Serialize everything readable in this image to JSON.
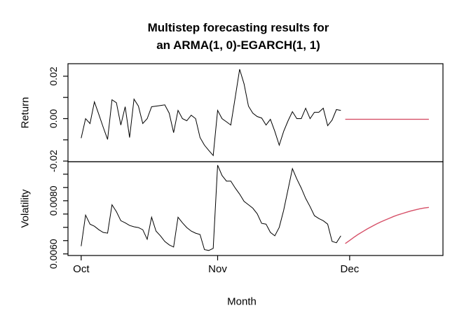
{
  "title": {
    "line1": "Multistep forecasting results for",
    "line2": "an ARMA(1, 0)-EGARCH(1, 1)"
  },
  "colors": {
    "background": "#FFFFFF",
    "axis": "#000000",
    "observed_series": "#000000",
    "forecast_series": "#D65068"
  },
  "chart_data": {
    "type": "line",
    "title": "Multistep forecasting results for an ARMA(1, 0)-EGARCH(1, 1)",
    "xlabel": "Month",
    "x_unit": "days (0 = Oct 1)",
    "x_domain": [
      -3.0,
      82.2
    ],
    "x_ticks": [
      {
        "label": "Oct",
        "day": 0
      },
      {
        "label": "Nov",
        "day": 31
      },
      {
        "label": "Dec",
        "day": 61
      }
    ],
    "grid": false,
    "legend": "none",
    "panels": [
      {
        "name": "return",
        "ylabel": "Return",
        "ylim": [
          -0.0203,
          0.0259
        ],
        "yticks": [
          -0.02,
          -0.01,
          0.0,
          0.01,
          0.02
        ],
        "ytick_labels": [
          {
            "value": 0.02,
            "label": "0.02"
          },
          {
            "value": 0.0,
            "label": "0.00"
          },
          {
            "value": -0.02,
            "label": "-0.02"
          }
        ],
        "series": [
          {
            "name": "observed-return",
            "color": "#000000",
            "x_start_day": 0,
            "values": [
              -0.0092,
              0.0,
              -0.0023,
              0.0079,
              0.002,
              -0.004,
              -0.0098,
              0.0089,
              0.0075,
              -0.003,
              0.0056,
              -0.0089,
              0.0092,
              0.0059,
              -0.0023,
              0.0,
              0.0056,
              0.0059,
              0.0062,
              0.0065,
              0.0026,
              -0.0066,
              0.0039,
              0.0,
              -0.001,
              0.0016,
              0.0,
              -0.0089,
              -0.0125,
              -0.015,
              -0.0174,
              0.0039,
              0.0,
              -0.0015,
              -0.003,
              0.01,
              0.0233,
              0.0164,
              0.0059,
              0.0026,
              0.001,
              0.0003,
              -0.003,
              -0.0003,
              -0.006,
              -0.0125,
              -0.006,
              -0.001,
              0.0033,
              0.0,
              0.0,
              0.0049,
              0.0,
              0.003,
              0.003,
              0.0049,
              -0.0033,
              -0.0007,
              0.0043,
              0.0039
            ]
          },
          {
            "name": "forecast-return",
            "color": "#D65068",
            "x_start_day": 60,
            "values": [
              -0.0003,
              -0.0003,
              -0.0003,
              -0.0003,
              -0.0003,
              -0.0003,
              -0.0003,
              -0.0003,
              -0.0003,
              -0.0003,
              -0.0003,
              -0.0003,
              -0.0003,
              -0.0003,
              -0.0003,
              -0.0003,
              -0.0003,
              -0.0003,
              -0.0003,
              -0.0003
            ]
          }
        ]
      },
      {
        "name": "volatility",
        "ylabel": "Volatility",
        "ylim": [
          0.00594,
          0.00947
        ],
        "yticks": [
          0.006,
          0.0065,
          0.007,
          0.0075,
          0.008,
          0.0085,
          0.009
        ],
        "ytick_labels": [
          {
            "value": 0.008,
            "label": "0.0080"
          },
          {
            "value": 0.006,
            "label": "0.0060"
          }
        ],
        "series": [
          {
            "name": "observed-volatility",
            "color": "#000000",
            "x_start_day": 0,
            "values": [
              0.00629,
              0.00746,
              0.00712,
              0.00704,
              0.00691,
              0.00681,
              0.00678,
              0.00785,
              0.00759,
              0.00725,
              0.00717,
              0.00707,
              0.00702,
              0.00699,
              0.00691,
              0.00655,
              0.00738,
              0.00686,
              0.00668,
              0.00647,
              0.00634,
              0.00626,
              0.00738,
              0.00717,
              0.00699,
              0.00686,
              0.00678,
              0.00673,
              0.00616,
              0.00613,
              0.00621,
              0.00934,
              0.00895,
              0.00874,
              0.00874,
              0.00848,
              0.00825,
              0.00798,
              0.00785,
              0.00772,
              0.00751,
              0.00715,
              0.00712,
              0.00681,
              0.00668,
              0.007,
              0.00764,
              0.00843,
              0.00921,
              0.00882,
              0.00848,
              0.00809,
              0.00778,
              0.00744,
              0.00733,
              0.00725,
              0.00712,
              0.00647,
              0.00642,
              0.00668
            ]
          },
          {
            "name": "forecast-volatility",
            "color": "#D65068",
            "x_start_day": 60,
            "values": [
              0.00639,
              0.00651,
              0.00663,
              0.00674,
              0.00684,
              0.00694,
              0.00703,
              0.00712,
              0.0072,
              0.00727,
              0.00734,
              0.00741,
              0.00747,
              0.00752,
              0.00757,
              0.00762,
              0.00766,
              0.0077,
              0.00773,
              0.00775
            ]
          }
        ]
      }
    ]
  }
}
